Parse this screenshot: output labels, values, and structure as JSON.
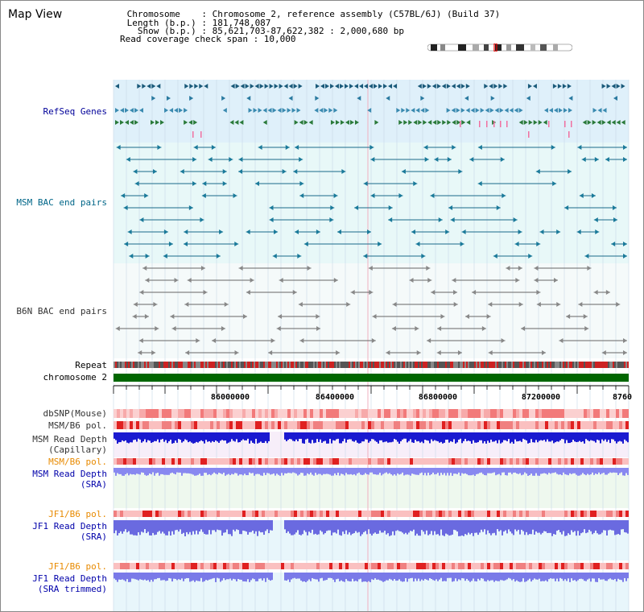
{
  "view_title": "Map View",
  "info": {
    "chromosome_line": " Chromosome    : Chromosome 2, reference assembly (C57BL/6J) (Build 37)",
    "length_line": " Length (b.p.) : 181,748,087",
    "show_line": "   Show (b.p.) : 85,621,703-87,622,382 : 2,000,680 bp",
    "coverage_line": "Read coverage check span : 10,000"
  },
  "tracks": {
    "refseq": "RefSeq Genes",
    "msm_bac": "MSM BAC end pairs",
    "b6n_bac": "B6N BAC end pairs",
    "repeat": "Repeat",
    "chromosome": "chromosome 2",
    "dbsnp": "dbSNP(Mouse)",
    "msm_b6_pol_1": "MSM/B6 pol.",
    "msm_depth_cap_1": "MSM Read Depth",
    "msm_depth_cap_2": "(Capillary)",
    "msm_b6_pol_2": "MSM/B6 pol.",
    "msm_depth_sra_1": "MSM Read Depth",
    "msm_depth_sra_2": "(SRA)",
    "jf1_b6_pol_1": "JF1/B6 pol.",
    "jf1_depth_sra_1": "JF1 Read Depth",
    "jf1_depth_sra_2": "(SRA)",
    "jf1_b6_pol_2": "JF1/B6 pol.",
    "jf1_depth_trim_1": "JF1 Read Depth",
    "jf1_depth_trim_2": "(SRA trimmed)"
  },
  "axis_ticks": [
    "86000000",
    "86400000",
    "86800000",
    "87200000",
    "8760"
  ],
  "colors": {
    "refseq_bg": "#dff0fa",
    "msm_bg": "#e6f8f8",
    "refseq_label": "#000099",
    "msm_label": "#006688",
    "b6n_label": "#333333",
    "pol_orange": "#e88a00",
    "depth_blue": "#0000aa",
    "chromosome_green": "#006600"
  }
}
